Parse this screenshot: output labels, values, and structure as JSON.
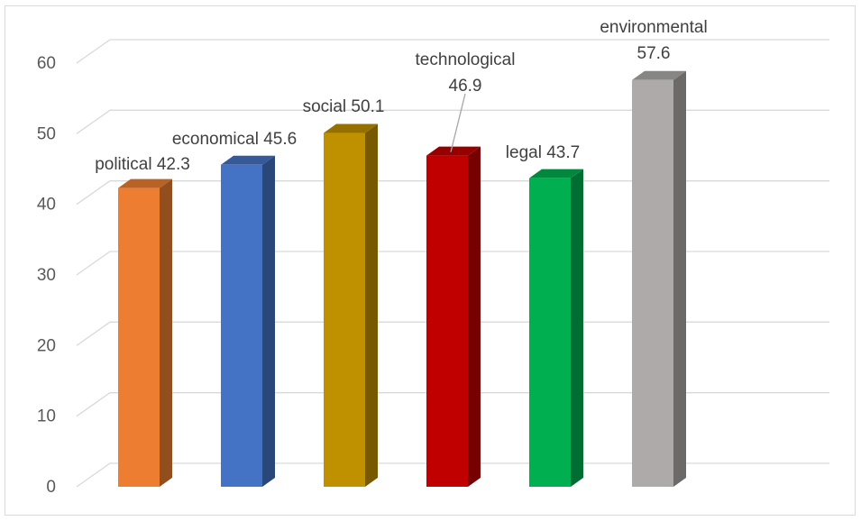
{
  "chart_data": {
    "type": "bar",
    "style": "3d-column",
    "categories": [
      "political",
      "economical",
      "social",
      "technological",
      "legal",
      "environmental"
    ],
    "values": [
      42.3,
      45.6,
      50.1,
      46.9,
      43.7,
      57.6
    ],
    "colors": [
      "#ED7D31",
      "#4472C4",
      "#BF9000",
      "#C00000",
      "#00B050",
      "#AEAAAA"
    ],
    "ylim": [
      0,
      60
    ],
    "yticks": [
      0,
      10,
      20,
      30,
      40,
      50,
      60
    ],
    "grid": true,
    "legend": "none",
    "data_labels": [
      {
        "lines": [
          "political 42.3"
        ]
      },
      {
        "lines": [
          "economical 45.6"
        ]
      },
      {
        "lines": [
          "social 50.1"
        ]
      },
      {
        "lines": [
          "technological",
          "46.9"
        ],
        "leader_line": true
      },
      {
        "lines": [
          "legal 43.7"
        ]
      },
      {
        "lines": [
          "environmental",
          "57.6"
        ]
      }
    ]
  }
}
